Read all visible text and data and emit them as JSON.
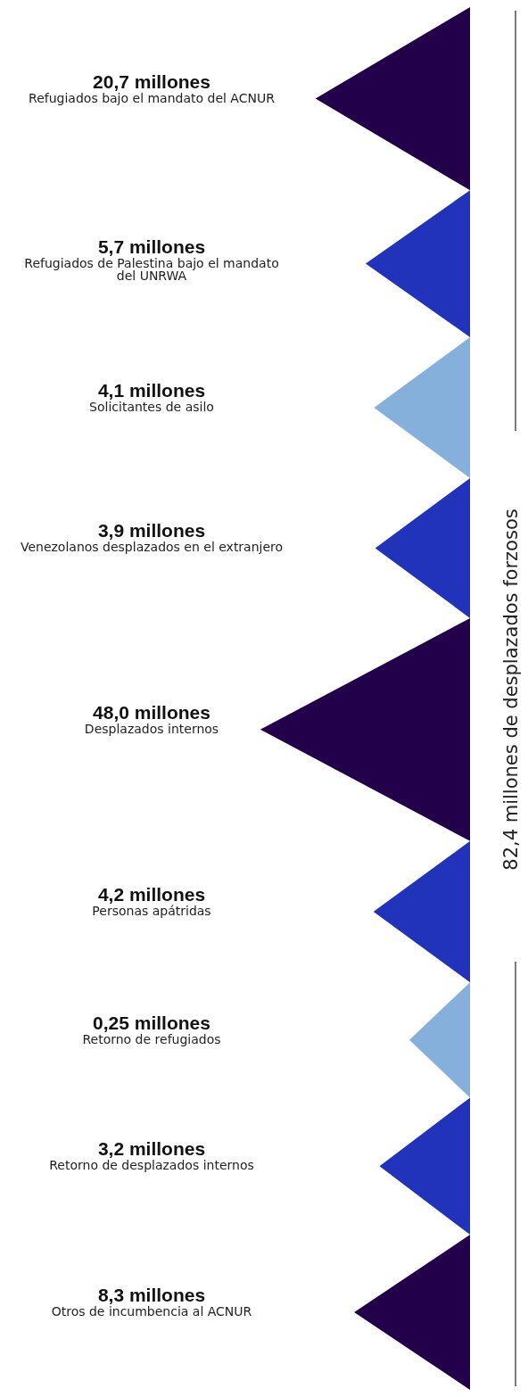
{
  "chart_data": {
    "type": "other",
    "categories": [
      "Refugiados bajo el mandato del ACNUR",
      "Refugiados de Palestina bajo el mandato del UNRWA",
      "Solicitantes de asilo",
      "Venezolanos desplazados en el extranjero",
      "Desplazados internos",
      "Personas apátridas",
      "Retorno de refugiados",
      "Retorno de desplazados internos",
      "Otros de incumbencia al ACNUR"
    ],
    "values": [
      20.7,
      5.7,
      4.1,
      3.9,
      48.0,
      4.2,
      0.25,
      3.2,
      8.3
    ],
    "value_labels": [
      "20,7 millones",
      "5,7 millones",
      "4,1 millones",
      "3,9 millones",
      "48,0 millones",
      "4,2 millones",
      "0,25 millones",
      "3,2 millones",
      "8,3 millones"
    ],
    "colors": [
      "#22004a",
      "#2233bb",
      "#85b0dc",
      "#2233bb",
      "#22004a",
      "#2233bb",
      "#85b0dc",
      "#2233bb",
      "#22004a"
    ],
    "annotations": [
      "82,4 millones de desplazados forzosos"
    ]
  }
}
